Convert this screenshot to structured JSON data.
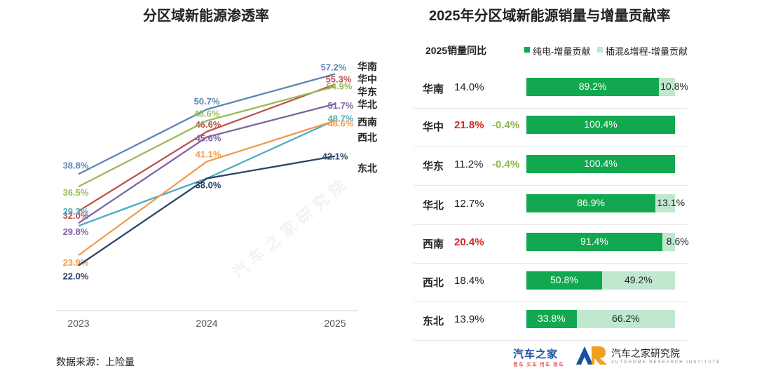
{
  "left_title": "分区域新能源渗透率",
  "right_title": "2025年分区域新能源销量与增量贡献率",
  "source": "数据来源：上险量",
  "watermark": "汽车之家研究院",
  "colors": {
    "华南": "#5b87b8",
    "华中": "#c0504d",
    "华东": "#9bbb59",
    "华北": "#8064a2",
    "西南": "#4bacc6",
    "西北": "#f09c4d",
    "东北": "#2b4468",
    "ev": "#12a84f",
    "phev": "#bfe8cf",
    "red": "#d62728",
    "delta": "#8cb84a"
  },
  "chart_data": [
    {
      "type": "line",
      "title": "分区域新能源渗透率",
      "x": [
        "2023",
        "2024",
        "2025"
      ],
      "ylim": [
        15,
        65
      ],
      "series": [
        {
          "name": "华南",
          "values": [
            38.8,
            50.7,
            57.2
          ],
          "labels": [
            "38.8%",
            "50.7%",
            "57.2%"
          ]
        },
        {
          "name": "华中",
          "values": [
            32.0,
            46.6,
            55.3
          ],
          "labels": [
            "32.0%",
            "46.6%",
            "55.3%"
          ]
        },
        {
          "name": "华东",
          "values": [
            36.5,
            48.6,
            54.9
          ],
          "labels": [
            "36.5%",
            "48.6%",
            "54.9%"
          ]
        },
        {
          "name": "华北",
          "values": [
            29.8,
            45.6,
            51.7
          ],
          "labels": [
            "29.8%",
            "45.6%",
            "51.7%"
          ]
        },
        {
          "name": "西南",
          "values": [
            29.3,
            38.0,
            48.7
          ],
          "labels": [
            "29.3%",
            "",
            "48.7%"
          ]
        },
        {
          "name": "西北",
          "values": [
            23.9,
            41.1,
            48.6
          ],
          "labels": [
            "23.9%",
            "41.1%",
            "48.6%"
          ]
        },
        {
          "name": "东北",
          "values": [
            22.0,
            38.0,
            42.1
          ],
          "labels": [
            "22.0%",
            "38.0%",
            "42.1%"
          ]
        }
      ]
    },
    {
      "type": "bar",
      "stacked": true,
      "orientation": "horizontal",
      "title": "2025年分区域新能源销量与增量贡献率",
      "yoy_header": "2025销量同比",
      "legend": [
        "纯电-增量贡献",
        "插混&增程-增量贡献"
      ],
      "categories": [
        "华南",
        "华中",
        "华东",
        "华北",
        "西南",
        "西北",
        "东北"
      ],
      "yoy": [
        "14.0%",
        "21.8%",
        "11.2%",
        "12.7%",
        "20.4%",
        "18.4%",
        "13.9%"
      ],
      "yoy_highlight": [
        false,
        true,
        false,
        false,
        true,
        false,
        false
      ],
      "series": [
        {
          "name": "纯电-增量贡献",
          "values": [
            89.2,
            100.4,
            100.4,
            86.9,
            91.4,
            50.8,
            33.8
          ],
          "labels": [
            "89.2%",
            "100.4%",
            "100.4%",
            "86.9%",
            "91.4%",
            "50.8%",
            "33.8%"
          ]
        },
        {
          "name": "插混&增程-增量贡献",
          "values": [
            10.8,
            -0.4,
            -0.4,
            13.1,
            8.6,
            49.2,
            66.2
          ],
          "labels": [
            "10.8%",
            "-0.4%",
            "-0.4%",
            "13.1%",
            "8.6%",
            "49.2%",
            "66.2%"
          ]
        }
      ]
    }
  ],
  "logos": {
    "autohome": "汽车之家",
    "autohome_tagline": "看车 买车 用车 换车",
    "institute": "汽车之家研究院",
    "institute_en": "AUTOHOME RESEARCH INSTITUTE"
  }
}
